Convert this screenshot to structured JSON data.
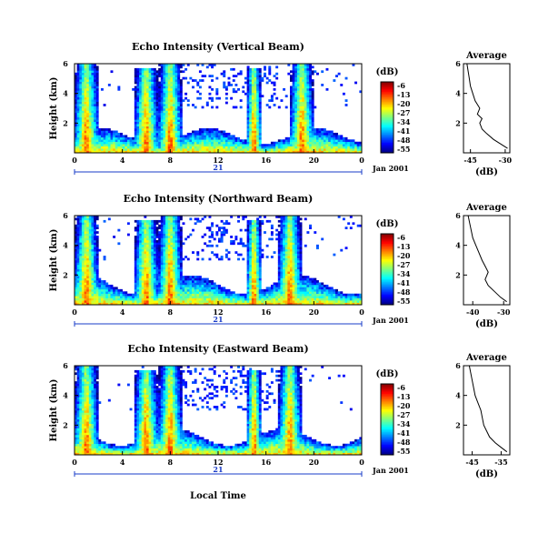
{
  "figure": {
    "date_label": "Jan 2001",
    "day_label": "21",
    "x_axis_label": "Local Time",
    "avg_title": "Average",
    "colorbar_unit": "(dB)",
    "colorbar_ticks": [
      "-6",
      "-13",
      "-20",
      "-27",
      "-34",
      "-41",
      "-48",
      "-55"
    ]
  },
  "chart_data": [
    {
      "type": "heatmap",
      "title": "Echo Intensity (Vertical Beam)",
      "ylabel": "Height (km)",
      "xticks": [
        "0",
        "4",
        "8",
        "12",
        "16",
        "20",
        "0"
      ],
      "yticks": [
        "2",
        "4",
        "6"
      ],
      "xlim": [
        0,
        24
      ],
      "ylim": [
        0,
        6
      ],
      "colorbar": {
        "unit": "(dB)",
        "range": [
          -55,
          -6
        ]
      },
      "convective_events_hours": [
        1,
        6,
        8,
        15,
        19
      ],
      "boundary_layer_top_km": 1.5
    },
    {
      "type": "line",
      "title": "Average",
      "xlabel": "(dB)",
      "xticks": [
        "-45",
        "-30"
      ],
      "yticks": [
        "2",
        "4",
        "6"
      ],
      "xlim": [
        -48,
        -28
      ],
      "ylim": [
        0,
        6
      ],
      "points": [
        [
          -29,
          0.3
        ],
        [
          -32,
          0.6
        ],
        [
          -35,
          0.9
        ],
        [
          -38,
          1.3
        ],
        [
          -40,
          1.6
        ],
        [
          -41,
          2.0
        ],
        [
          -40,
          2.3
        ],
        [
          -42,
          2.6
        ],
        [
          -41,
          3.0
        ],
        [
          -43,
          3.5
        ],
        [
          -44,
          4.0
        ],
        [
          -45,
          4.5
        ],
        [
          -45.5,
          5.0
        ],
        [
          -46,
          5.5
        ],
        [
          -46.5,
          6.0
        ]
      ]
    },
    {
      "type": "heatmap",
      "title": "Echo Intensity (Northward Beam)",
      "ylabel": "Height (km)",
      "xticks": [
        "0",
        "4",
        "8",
        "12",
        "16",
        "20",
        "0"
      ],
      "yticks": [
        "2",
        "4",
        "6"
      ],
      "xlim": [
        0,
        24
      ],
      "ylim": [
        0,
        6
      ],
      "colorbar": {
        "unit": "(dB)",
        "range": [
          -55,
          -6
        ]
      },
      "convective_events_hours": [
        1,
        6,
        8,
        15,
        18
      ],
      "boundary_layer_top_km": 1.8
    },
    {
      "type": "line",
      "title": "Average",
      "xlabel": "(dB)",
      "xticks": [
        "-40",
        "-30"
      ],
      "yticks": [
        "2",
        "4",
        "6"
      ],
      "xlim": [
        -43,
        -28
      ],
      "ylim": [
        0,
        6
      ],
      "points": [
        [
          -29,
          0.2
        ],
        [
          -31,
          0.5
        ],
        [
          -33,
          0.9
        ],
        [
          -35,
          1.3
        ],
        [
          -36,
          1.7
        ],
        [
          -35,
          2.2
        ],
        [
          -36,
          2.6
        ],
        [
          -37,
          3.0
        ],
        [
          -38,
          3.5
        ],
        [
          -39,
          4.0
        ],
        [
          -40,
          4.5
        ],
        [
          -40.5,
          5.0
        ],
        [
          -41,
          5.5
        ],
        [
          -41.5,
          6.0
        ]
      ]
    },
    {
      "type": "heatmap",
      "title": "Echo Intensity (Eastward Beam)",
      "ylabel": "Height (km)",
      "xticks": [
        "0",
        "4",
        "8",
        "12",
        "16",
        "20",
        "0"
      ],
      "yticks": [
        "2",
        "4",
        "6"
      ],
      "xlim": [
        0,
        24
      ],
      "ylim": [
        0,
        6
      ],
      "colorbar": {
        "unit": "(dB)",
        "range": [
          -55,
          -6
        ]
      },
      "convective_events_hours": [
        1,
        6,
        8,
        15,
        18
      ],
      "boundary_layer_top_km": 1.6
    },
    {
      "type": "line",
      "title": "Average",
      "xlabel": "(dB)",
      "xticks": [
        "-45",
        "-35"
      ],
      "yticks": [
        "2",
        "4",
        "6"
      ],
      "xlim": [
        -48,
        -32
      ],
      "ylim": [
        0,
        6
      ],
      "points": [
        [
          -33,
          0.2
        ],
        [
          -35,
          0.5
        ],
        [
          -37,
          0.8
        ],
        [
          -39,
          1.2
        ],
        [
          -40,
          1.6
        ],
        [
          -41,
          2.0
        ],
        [
          -41.5,
          2.5
        ],
        [
          -42,
          3.0
        ],
        [
          -43,
          3.5
        ],
        [
          -44,
          4.0
        ],
        [
          -44.5,
          4.5
        ],
        [
          -45,
          5.0
        ],
        [
          -45.5,
          5.5
        ],
        [
          -46,
          6.0
        ]
      ]
    }
  ]
}
